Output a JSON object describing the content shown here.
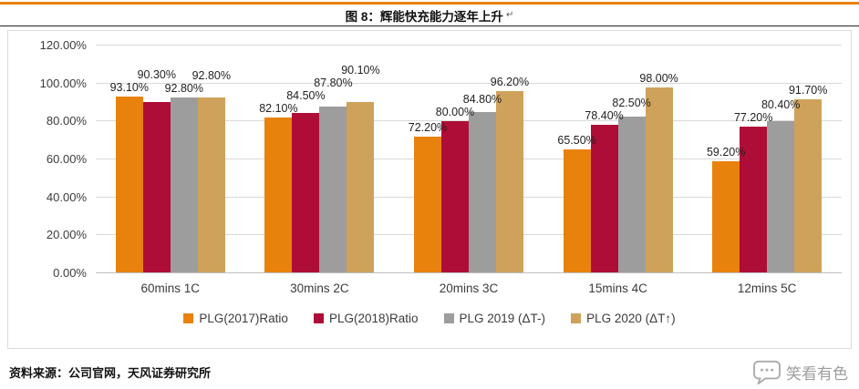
{
  "header": {
    "title": "图 8：辉能快充能力逐年上升",
    "return_mark": "↵"
  },
  "chart_data": {
    "type": "bar",
    "title": "图 8：辉能快充能力逐年上升",
    "categories": [
      "60mins 1C",
      "30mins 2C",
      "20mins 3C",
      "15mins 4C",
      "12mins 5C"
    ],
    "series": [
      {
        "name": "PLG(2017)Ratio",
        "color": "#E8820D",
        "values": [
          93.1,
          82.1,
          72.2,
          65.5,
          59.2
        ]
      },
      {
        "name": "PLG(2018)Ratio",
        "color": "#AE0D37",
        "values": [
          90.3,
          84.5,
          80.0,
          78.4,
          77.2
        ]
      },
      {
        "name": "PLG 2019 (ΔT-)",
        "color": "#9D9D9D",
        "values": [
          92.8,
          87.8,
          84.8,
          82.5,
          80.4
        ]
      },
      {
        "name": "PLG 2020 (ΔT↑)",
        "color": "#CEA25B",
        "values": [
          92.8,
          90.1,
          96.2,
          98.0,
          91.7
        ]
      }
    ],
    "ylim": [
      0,
      120
    ],
    "ytick_step": 20,
    "ytick_labels": [
      "0.00%",
      "20.00%",
      "40.00%",
      "60.00%",
      "80.00%",
      "100.00%",
      "120.00%"
    ],
    "value_label_suffix": "%",
    "grid": true,
    "legend_position": "bottom"
  },
  "footer": {
    "source": "资料来源：公司官网，天风证券研究所",
    "watermark": "笑看有色"
  },
  "colors": {
    "accent_orange": "#E8820D",
    "title_rule": "#262626",
    "card_border": "#DCDCDC",
    "gridline": "#D9D9D9",
    "axis_line": "#BFBFBF",
    "axis_text": "#3B3B3B",
    "value_text": "#1F1F1F",
    "watermark_gray": "#9E9E9E"
  }
}
